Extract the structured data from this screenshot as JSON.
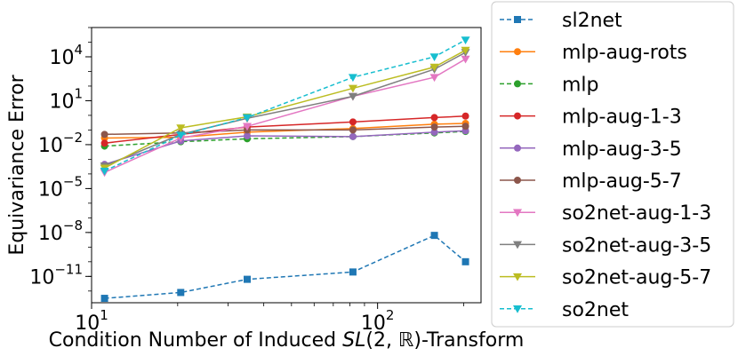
{
  "chart_data": {
    "type": "line",
    "xlabel_parts": [
      "Condition Number of Induced ",
      "SL",
      "(2, ℝ)-Transform"
    ],
    "ylabel": "Equivariance Error",
    "xscale": "log",
    "yscale": "log",
    "xlim": [
      10,
      230
    ],
    "ylim_exp": [
      -12.8,
      6.0
    ],
    "x_ticks": [
      {
        "value": 10,
        "base": "10",
        "exp": "1"
      },
      {
        "value": 100,
        "base": "10",
        "exp": "2"
      }
    ],
    "y_ticks": [
      {
        "exp_value": 4,
        "base": "10",
        "exp": "4"
      },
      {
        "exp_value": 1,
        "base": "10",
        "exp": "1"
      },
      {
        "exp_value": -2,
        "base": "10",
        "exp": "−2"
      },
      {
        "exp_value": -5,
        "base": "10",
        "exp": "−5"
      },
      {
        "exp_value": -8,
        "base": "10",
        "exp": "−8"
      },
      {
        "exp_value": -11,
        "base": "10",
        "exp": "−11"
      }
    ],
    "grid": false,
    "legend_position": "outside-right",
    "x": [
      11.1,
      20.5,
      35,
      82,
      158,
      203
    ],
    "series": [
      {
        "name": "sl2net",
        "color": "#1f77b4",
        "marker": "square",
        "dash": true,
        "log10_values": [
          -12.5,
          -12.1,
          -11.2,
          -10.7,
          -8.2,
          -10.0
        ]
      },
      {
        "name": "mlp-aug-rots",
        "color": "#ff7f0e",
        "marker": "circle",
        "dash": false,
        "log10_values": [
          -1.55,
          -1.5,
          -1.15,
          -0.9,
          -0.6,
          -0.55
        ]
      },
      {
        "name": "mlp",
        "color": "#2ca02c",
        "marker": "circle",
        "dash": true,
        "log10_values": [
          -2.1,
          -1.8,
          -1.6,
          -1.45,
          -1.2,
          -1.1
        ]
      },
      {
        "name": "mlp-aug-1-3",
        "color": "#d62728",
        "marker": "circle",
        "dash": false,
        "log10_values": [
          -1.9,
          -1.3,
          -0.8,
          -0.45,
          -0.15,
          -0.05
        ]
      },
      {
        "name": "mlp-aug-3-5",
        "color": "#9467bd",
        "marker": "circle",
        "dash": false,
        "log10_values": [
          -3.35,
          -1.75,
          -1.4,
          -1.45,
          -1.15,
          -1.05
        ]
      },
      {
        "name": "mlp-aug-5-7",
        "color": "#8c564b",
        "marker": "circle",
        "dash": false,
        "log10_values": [
          -1.3,
          -1.2,
          -1.0,
          -1.0,
          -0.8,
          -0.75
        ]
      },
      {
        "name": "so2net-aug-1-3",
        "color": "#e377c2",
        "marker": "triangle",
        "dash": false,
        "log10_values": [
          -3.9,
          -1.55,
          -0.75,
          1.3,
          2.6,
          3.85
        ]
      },
      {
        "name": "so2net-aug-3-5",
        "color": "#7f7f7f",
        "marker": "triangle",
        "dash": false,
        "log10_values": [
          -3.45,
          -1.3,
          -0.2,
          1.3,
          3.15,
          4.3
        ]
      },
      {
        "name": "so2net-aug-5-7",
        "color": "#bcbd22",
        "marker": "triangle",
        "dash": false,
        "log10_values": [
          -3.6,
          -0.85,
          -0.1,
          1.85,
          3.3,
          4.45
        ]
      },
      {
        "name": "so2net",
        "color": "#17becf",
        "marker": "triangle",
        "dash": true,
        "log10_values": [
          -3.8,
          -1.35,
          -0.15,
          2.6,
          4.0,
          5.15
        ]
      }
    ]
  }
}
